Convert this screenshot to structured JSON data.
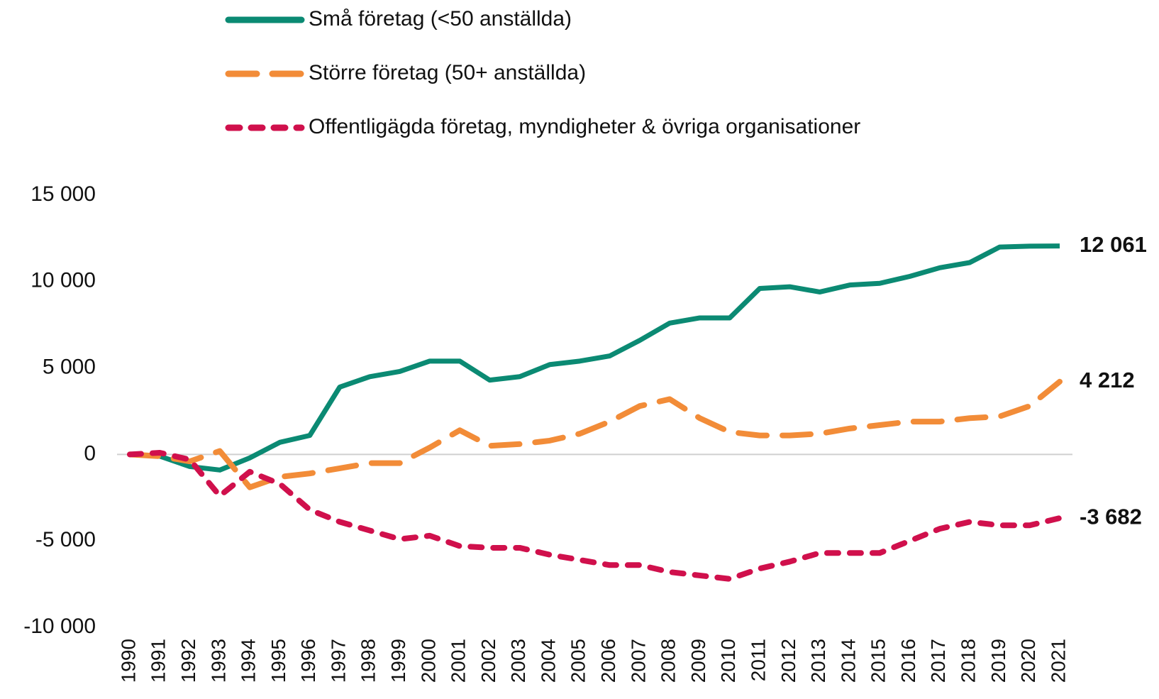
{
  "chart_data": {
    "type": "line",
    "categories": [
      "1990",
      "1991",
      "1992",
      "1993",
      "1994",
      "1995",
      "1996",
      "1997",
      "1998",
      "1999",
      "2000",
      "2001",
      "2002",
      "2003",
      "2004",
      "2005",
      "2006",
      "2007",
      "2008",
      "2009",
      "2010",
      "2011",
      "2012",
      "2013",
      "2014",
      "2015",
      "2016",
      "2017",
      "2018",
      "2019",
      "2020",
      "2021"
    ],
    "series": [
      {
        "name": "Små företag (<50 anställda)",
        "color": "#0b8a73",
        "dash": "solid",
        "values": [
          0,
          -100,
          -700,
          -900,
          -200,
          700,
          1100,
          3900,
          4500,
          4800,
          5400,
          5400,
          4300,
          4500,
          5200,
          5400,
          5700,
          6600,
          7600,
          7900,
          7900,
          9600,
          9700,
          9400,
          9800,
          9900,
          10300,
          10800,
          11100,
          12000,
          12050,
          12061
        ],
        "value_labels": [
          null,
          null,
          null,
          null,
          null,
          null,
          null,
          null,
          null,
          null,
          null,
          null,
          null,
          null,
          null,
          null,
          null,
          null,
          null,
          null,
          null,
          null,
          null,
          null,
          null,
          null,
          null,
          null,
          null,
          null,
          null,
          "12 061"
        ]
      },
      {
        "name": "Större företag (50+ anställda)",
        "color": "#f28c38",
        "dash": "long",
        "values": [
          0,
          -100,
          -400,
          200,
          -1900,
          -1300,
          -1100,
          -800,
          -500,
          -500,
          400,
          1400,
          500,
          600,
          800,
          1200,
          1900,
          2800,
          3200,
          2100,
          1300,
          1100,
          1100,
          1200,
          1500,
          1700,
          1900,
          1900,
          2100,
          2200,
          2800,
          4212
        ],
        "value_labels": [
          null,
          null,
          null,
          null,
          null,
          null,
          null,
          null,
          null,
          null,
          null,
          null,
          null,
          null,
          null,
          null,
          null,
          null,
          null,
          null,
          null,
          null,
          null,
          null,
          null,
          null,
          null,
          null,
          null,
          null,
          null,
          "4 212"
        ]
      },
      {
        "name": "Offentligägda företag, myndigheter & övriga organisationer",
        "color": "#d0104c",
        "dash": "short",
        "values": [
          0,
          100,
          -300,
          -2400,
          -1000,
          -1700,
          -3200,
          -3900,
          -4400,
          -4900,
          -4700,
          -5300,
          -5400,
          -5400,
          -5800,
          -6100,
          -6400,
          -6400,
          -6800,
          -7000,
          -7200,
          -6600,
          -6200,
          -5700,
          -5700,
          -5700,
          -5000,
          -4300,
          -3900,
          -4100,
          -4100,
          -3682
        ],
        "value_labels": [
          null,
          null,
          null,
          null,
          null,
          null,
          null,
          null,
          null,
          null,
          null,
          null,
          null,
          null,
          null,
          null,
          null,
          null,
          null,
          null,
          null,
          null,
          null,
          null,
          null,
          null,
          null,
          null,
          null,
          null,
          null,
          "-3 682"
        ]
      }
    ],
    "ylim": [
      -10000,
      15000
    ],
    "yticks": [
      {
        "value": -10000,
        "label": "-10 000"
      },
      {
        "value": -5000,
        "label": "-5 000"
      },
      0,
      {
        "value": 5000,
        "label": "5 000"
      },
      {
        "value": 10000,
        "label": "10 000"
      },
      {
        "value": 15000,
        "label": "15 000"
      }
    ],
    "zero_line": true,
    "legend": "top"
  }
}
